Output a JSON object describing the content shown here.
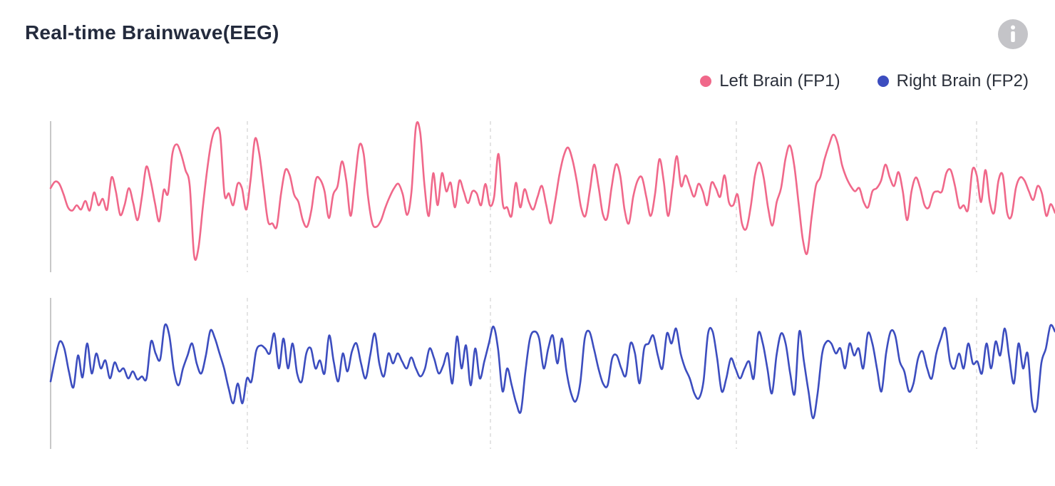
{
  "title": "Real-time Brainwave(EEG)",
  "info_button": {
    "icon": "info-icon"
  },
  "legend": [
    {
      "label": "Left Brain (FP1)",
      "color": "#f0688a"
    },
    {
      "label": "Right Brain (FP2)",
      "color": "#3c4dbf"
    }
  ],
  "colors": {
    "fp1": "#f0688a",
    "fp2": "#3c4dbf",
    "grid": "#d6d6d6",
    "axis": "#b5b5b5",
    "title": "#242b3d"
  },
  "chart_data": {
    "type": "line",
    "title": "Real-time Brainwave(EEG)",
    "xlabel": "",
    "ylabel": "",
    "grid": "vertical dashed",
    "legend_position": "top-right",
    "x_gridlines": 4,
    "series": [
      {
        "name": "Left Brain (FP1)",
        "color": "#f0688a",
        "values": [
          0.08,
          0.14,
          0.12,
          0.02,
          -0.1,
          -0.13,
          -0.08,
          -0.12,
          -0.04,
          -0.13,
          0.04,
          -0.08,
          -0.02,
          -0.12,
          0.18,
          0.05,
          -0.17,
          -0.08,
          0.08,
          -0.06,
          -0.22,
          0.0,
          0.28,
          0.15,
          -0.06,
          -0.23,
          0.06,
          0.03,
          0.4,
          0.49,
          0.4,
          0.25,
          0.1,
          -0.55,
          -0.48,
          -0.1,
          0.25,
          0.52,
          0.63,
          0.58,
          0.02,
          0.03,
          -0.08,
          0.12,
          0.08,
          -0.12,
          0.16,
          0.54,
          0.4,
          0.08,
          -0.23,
          -0.25,
          -0.28,
          0.03,
          0.25,
          0.2,
          0.02,
          -0.05,
          -0.22,
          -0.28,
          -0.12,
          0.16,
          0.16,
          0.05,
          -0.2,
          0.02,
          0.1,
          0.33,
          0.15,
          -0.18,
          0.15,
          0.48,
          0.4,
          0.0,
          -0.25,
          -0.28,
          -0.22,
          -0.1,
          0.0,
          0.08,
          0.12,
          0.02,
          -0.17,
          0.05,
          0.65,
          0.6,
          0.1,
          -0.18,
          0.22,
          -0.08,
          0.22,
          0.05,
          0.13,
          -0.1,
          0.15,
          0.05,
          -0.06,
          0.05,
          0.03,
          -0.08,
          0.12,
          -0.08,
          0.0,
          0.4,
          -0.07,
          -0.1,
          -0.18,
          0.13,
          -0.1,
          0.07,
          -0.05,
          -0.12,
          0.0,
          0.1,
          -0.08,
          -0.25,
          -0.05,
          0.2,
          0.38,
          0.46,
          0.35,
          0.15,
          -0.1,
          -0.18,
          0.05,
          0.3,
          0.1,
          -0.16,
          -0.2,
          0.08,
          0.3,
          0.2,
          -0.12,
          -0.25,
          0.0,
          0.15,
          0.18,
          0.0,
          -0.18,
          0.02,
          0.35,
          0.15,
          -0.18,
          0.08,
          0.38,
          0.1,
          0.2,
          0.1,
          0.0,
          0.12,
          0.05,
          -0.08,
          0.13,
          0.08,
          0.0,
          0.2,
          -0.05,
          -0.08,
          0.02,
          -0.25,
          -0.3,
          -0.1,
          0.2,
          0.32,
          0.18,
          -0.1,
          -0.27,
          -0.05,
          0.08,
          0.35,
          0.48,
          0.3,
          -0.05,
          -0.4,
          -0.53,
          -0.2,
          0.1,
          0.18,
          0.35,
          0.48,
          0.58,
          0.5,
          0.3,
          0.18,
          0.1,
          0.05,
          0.08,
          -0.05,
          -0.1,
          0.05,
          0.08,
          0.15,
          0.3,
          0.18,
          0.1,
          0.23,
          0.05,
          -0.22,
          0.05,
          0.18,
          0.08,
          -0.08,
          -0.1,
          0.03,
          0.05,
          0.05,
          0.22,
          0.25,
          0.1,
          -0.1,
          -0.08,
          -0.12,
          0.25,
          0.2,
          -0.05,
          0.25,
          -0.05,
          -0.15,
          0.15,
          0.2,
          -0.15,
          -0.18,
          0.08,
          0.18,
          0.15,
          0.05,
          -0.03,
          0.1,
          0.03,
          -0.18,
          -0.07,
          -0.15
        ]
      },
      {
        "name": "Right Brain (FP2)",
        "color": "#3c4dbf",
        "values": [
          -0.08,
          0.15,
          0.32,
          0.25,
          0.02,
          -0.14,
          0.18,
          -0.04,
          0.3,
          0.0,
          0.2,
          0.05,
          0.13,
          -0.05,
          0.11,
          0.02,
          0.05,
          -0.05,
          0.02,
          -0.06,
          -0.03,
          -0.05,
          0.32,
          0.2,
          0.14,
          0.48,
          0.38,
          0.03,
          -0.12,
          0.05,
          0.18,
          0.3,
          0.1,
          0.0,
          0.18,
          0.43,
          0.35,
          0.2,
          0.05,
          -0.15,
          -0.3,
          -0.1,
          -0.3,
          -0.05,
          -0.08,
          0.22,
          0.28,
          0.25,
          0.2,
          0.4,
          0.05,
          0.35,
          0.05,
          0.3,
          0.0,
          -0.08,
          0.2,
          0.25,
          0.05,
          0.13,
          0.0,
          0.38,
          0.12,
          -0.08,
          0.2,
          0.02,
          0.22,
          0.3,
          0.1,
          -0.05,
          0.18,
          0.4,
          0.1,
          -0.03,
          0.2,
          0.1,
          0.2,
          0.12,
          0.05,
          0.16,
          0.05,
          -0.03,
          0.05,
          0.25,
          0.15,
          0.0,
          0.08,
          0.2,
          -0.1,
          0.37,
          0.05,
          0.28,
          -0.12,
          0.25,
          -0.05,
          0.12,
          0.3,
          0.47,
          0.25,
          -0.18,
          0.05,
          -0.12,
          -0.3,
          -0.38,
          0.02,
          0.35,
          0.42,
          0.35,
          0.05,
          0.25,
          0.38,
          0.1,
          0.35,
          0.02,
          -0.2,
          -0.28,
          -0.1,
          0.35,
          0.42,
          0.25,
          0.05,
          -0.1,
          -0.12,
          0.15,
          0.18,
          0.05,
          -0.02,
          0.3,
          0.2,
          -0.1,
          0.25,
          0.3,
          0.38,
          0.18,
          0.05,
          0.4,
          0.3,
          0.45,
          0.2,
          0.05,
          -0.05,
          -0.2,
          -0.25,
          -0.08,
          0.4,
          0.42,
          0.15,
          -0.18,
          -0.05,
          0.15,
          0.05,
          -0.05,
          0.05,
          0.12,
          -0.05,
          0.4,
          0.3,
          0.05,
          -0.2,
          0.18,
          0.4,
          0.3,
          0.0,
          -0.2,
          0.42,
          0.12,
          -0.18,
          -0.45,
          -0.2,
          0.2,
          0.32,
          0.3,
          0.2,
          0.25,
          0.05,
          0.3,
          0.18,
          0.25,
          0.05,
          0.4,
          0.3,
          0.05,
          -0.18,
          0.2,
          0.42,
          0.38,
          0.12,
          0.02,
          -0.18,
          -0.1,
          0.15,
          0.22,
          0.05,
          -0.05,
          0.2,
          0.35,
          0.45,
          0.12,
          0.05,
          0.2,
          0.05,
          0.3,
          0.1,
          0.12,
          0.0,
          0.3,
          0.05,
          0.32,
          0.18,
          0.45,
          0.15,
          -0.1,
          0.3,
          0.05,
          0.2,
          -0.3,
          -0.35,
          0.1,
          0.25,
          0.48,
          0.42
        ]
      }
    ]
  }
}
